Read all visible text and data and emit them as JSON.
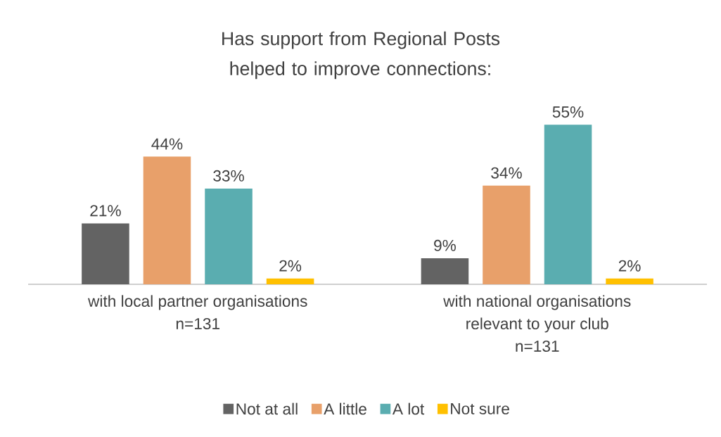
{
  "chart_data": {
    "type": "bar",
    "title": "Has support from Regional Posts helped to improve connections:",
    "categories": [
      "with local partner organisations\nn=131",
      "with national organisations\nrelevant to your club\nn=131"
    ],
    "series": [
      {
        "name": "Not at all",
        "color": "#636363",
        "values": [
          21,
          9
        ],
        "value_labels": [
          "21%",
          "9%"
        ]
      },
      {
        "name": "A little",
        "color": "#e8a06a",
        "values": [
          44,
          34
        ],
        "value_labels": [
          "44%",
          "34%"
        ]
      },
      {
        "name": "A lot",
        "color": "#5aadb0",
        "values": [
          33,
          55
        ],
        "value_labels": [
          "33%",
          "55%"
        ]
      },
      {
        "name": "Not sure",
        "color": "#ffc000",
        "values": [
          2,
          2
        ],
        "value_labels": [
          "2%",
          "2%"
        ]
      }
    ],
    "legend": "bottom"
  }
}
